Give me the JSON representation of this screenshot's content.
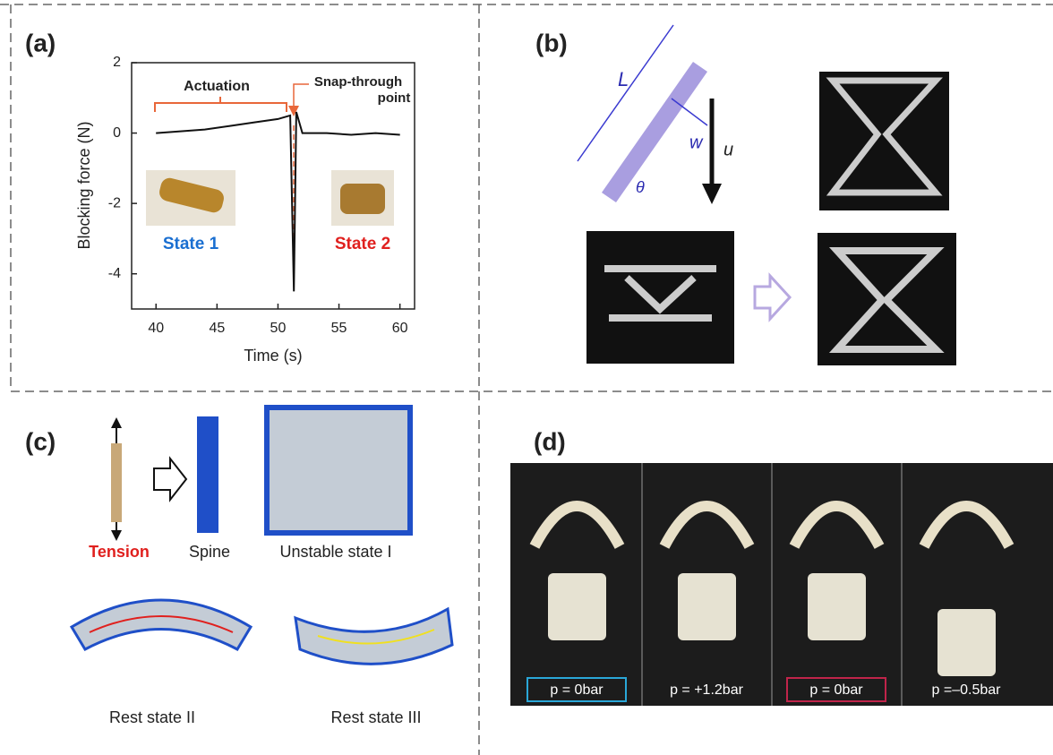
{
  "panels": {
    "a": {
      "label": "(a)",
      "plot": {
        "xlabel": "Time (s)",
        "ylabel": "Blocking force (N)",
        "xlim": [
          38,
          61.2
        ],
        "ylim": [
          -5,
          2
        ],
        "xticks": [
          40,
          45,
          50,
          55,
          60
        ],
        "yticks": [
          2,
          0,
          -2,
          -4
        ],
        "x": [
          40,
          42,
          44,
          46,
          48,
          50,
          51,
          51.3,
          51.5,
          52,
          54,
          56,
          58,
          60
        ],
        "values": [
          0,
          0.05,
          0.1,
          0.2,
          0.3,
          0.4,
          0.5,
          -4.5,
          0.6,
          0,
          0,
          -0.05,
          0,
          -0.05
        ],
        "color": "#111111"
      },
      "annotations": {
        "actuation": "Actuation",
        "snap": [
          "Snap-through",
          "point"
        ],
        "state1": "State 1",
        "state2": "State 2"
      }
    },
    "b": {
      "label": "(b)",
      "symbols": {
        "length": "L",
        "width": "w",
        "displacement": "u",
        "angle": "θ"
      }
    },
    "c": {
      "label": "(c)",
      "captions": {
        "tension": "Tension",
        "spine": "Spine",
        "unstable": "Unstable state I",
        "rest2": "Rest state II",
        "rest3": "Rest state III"
      }
    },
    "d": {
      "label": "(d)",
      "pressures": [
        "p = 0bar",
        "p = +1.2bar",
        "p = 0bar",
        "p =–0.5bar"
      ]
    }
  }
}
